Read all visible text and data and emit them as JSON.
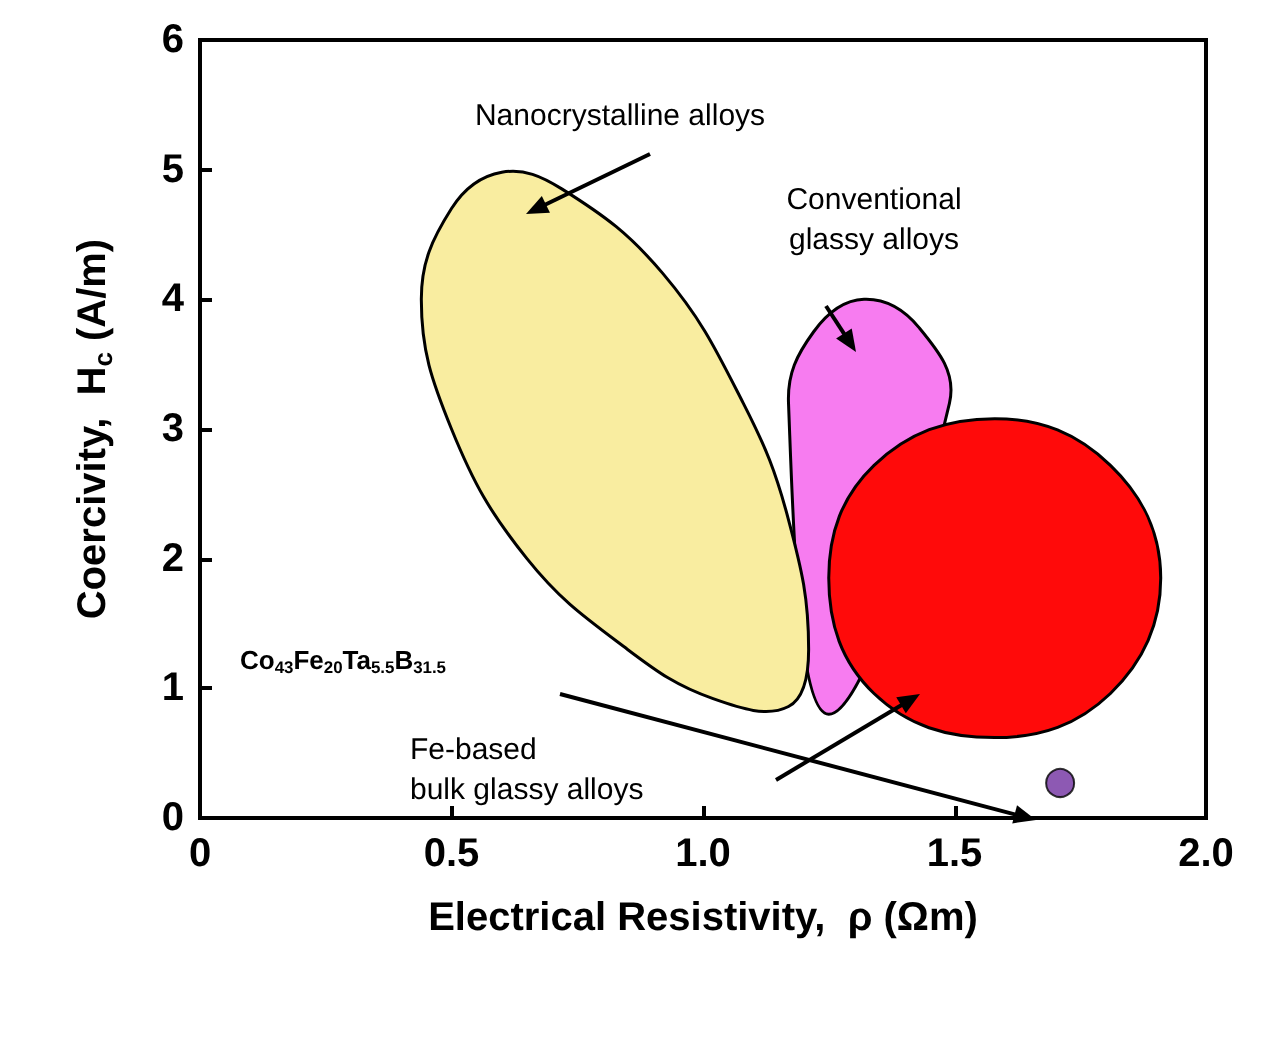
{
  "chart_data": {
    "type": "area",
    "xlabel": "Electrical Resistivity,  ρ (Ωm)",
    "ylabel": "Coercivity,  H$_{c}$ (A/m)",
    "xlim": [
      0,
      2
    ],
    "xticks": [
      0,
      0.5,
      {
        "value": 1,
        "label": "1.0"
      },
      1.5,
      {
        "value": 2,
        "label": "2.0"
      }
    ],
    "ylim": [
      0,
      6
    ],
    "yticks": [
      0,
      1,
      2,
      3,
      4,
      5,
      6
    ],
    "grid": false,
    "series": [
      {
        "color": "#f77cf0",
        "x": [
          1.32,
          1.43,
          1.49,
          null,
          null,
          1.25,
          null,
          null,
          1.17,
          1.22
        ],
        "values": [
          4.0,
          3.78,
          3.2,
          null,
          null,
          0.8,
          null,
          null,
          3.2,
          3.75
        ]
      },
      {
        "color": "#f9eda0",
        "x": [
          1.17,
          1.21,
          1.17,
          1.08,
          0.92,
          0.72,
          0.6,
          0.5,
          0.44,
          0.5,
          0.65,
          0.85,
          1.02
        ],
        "values": [
          0.86,
          1.3,
          2.3,
          3.2,
          4.2,
          4.85,
          4.98,
          4.7,
          4.0,
          3.0,
          2.0,
          1.3,
          0.92
        ]
      },
      {
        "color": "#ff0a0a",
        "x": [
          1.58,
          1.81,
          1.91,
          1.81,
          1.58,
          1.34,
          1.25,
          1.34
        ],
        "values": [
          3.08,
          2.72,
          1.85,
          0.96,
          0.62,
          0.96,
          1.85,
          2.72
        ]
      },
      {
        "type": "scatter",
        "marker": "circle",
        "color": "#7030a0",
        "x": [
          1.71
        ],
        "values": [
          0.27
        ]
      }
    ],
    "annotations": [
      "Nanocrystalline alloys",
      "Conventional\nglassy alloys",
      "Fe-based\nbulk glassy alloys",
      "Co$_{43}$Fe$_{20}$Ta$_{5.5}$B$_{31.5}$"
    ]
  }
}
